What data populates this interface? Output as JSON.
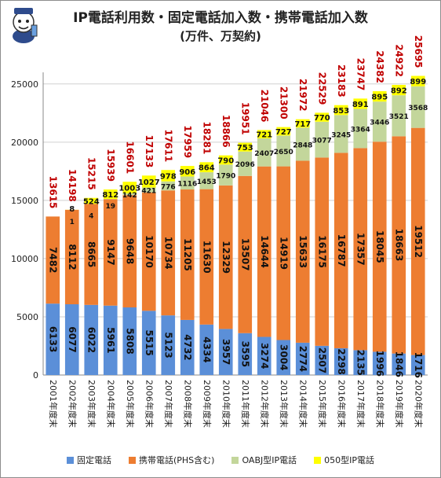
{
  "title": "IP電話利用数・固定電話加入数・携帯電話加入数",
  "subtitle": "(万件、万契約)",
  "colors": {
    "fixed": "#5b8fd8",
    "mobile": "#ed7d31",
    "oabj": "#c3d69b",
    "ip050": "#ffff00",
    "total_label": "#c00000"
  },
  "chart_data": {
    "type": "bar",
    "stacked": true,
    "categories": [
      "2001年度末",
      "2002年度末",
      "2003年度末",
      "2004年度末",
      "2005年度末",
      "2006年度末",
      "2007年度末",
      "2008年度末",
      "2009年度末",
      "2010年度末",
      "2011年度末",
      "2012年度末",
      "2013年度末",
      "2014年度末",
      "2015年度末",
      "2016年度末",
      "2017年度末",
      "2018年度末",
      "2019年度末",
      "2020年度末"
    ],
    "series": [
      {
        "name": "固定電話",
        "color": "#5b8fd8",
        "values": [
          6133,
          6077,
          6022,
          5961,
          5808,
          5515,
          5123,
          4732,
          4334,
          3957,
          3595,
          3274,
          3004,
          2774,
          2507,
          2298,
          2135,
          1996,
          1846,
          1716
        ]
      },
      {
        "name": "携帯電話(PHS含む)",
        "color": "#ed7d31",
        "values": [
          7482,
          8112,
          8665,
          9147,
          9648,
          10170,
          10734,
          11205,
          11630,
          12329,
          13507,
          14644,
          14919,
          15633,
          16175,
          16787,
          17357,
          18045,
          18663,
          19512
        ]
      },
      {
        "name": "OABJ型IP電話",
        "color": "#c3d69b",
        "values": [
          0,
          1,
          4,
          19,
          142,
          421,
          776,
          1116,
          1453,
          1790,
          2096,
          2407,
          2650,
          2848,
          3077,
          3245,
          3364,
          3446,
          3521,
          3568
        ]
      },
      {
        "name": "050型IP電話",
        "color": "#ffff00",
        "values": [
          0,
          8,
          524,
          812,
          1003,
          1027,
          978,
          906,
          864,
          790,
          753,
          721,
          727,
          717,
          770,
          853,
          891,
          895,
          892,
          899
        ]
      }
    ],
    "totals": [
      13615,
      14198,
      15215,
      15939,
      16601,
      17133,
      17611,
      17959,
      18281,
      18866,
      19951,
      21046,
      21300,
      21972,
      22529,
      23183,
      23747,
      24382,
      24922,
      25695
    ],
    "yticks": [
      0,
      5000,
      10000,
      15000,
      20000,
      25000
    ],
    "ylim": [
      0,
      26000
    ],
    "xlabel": "",
    "ylabel": "",
    "legend_position": "bottom",
    "grid": true
  }
}
